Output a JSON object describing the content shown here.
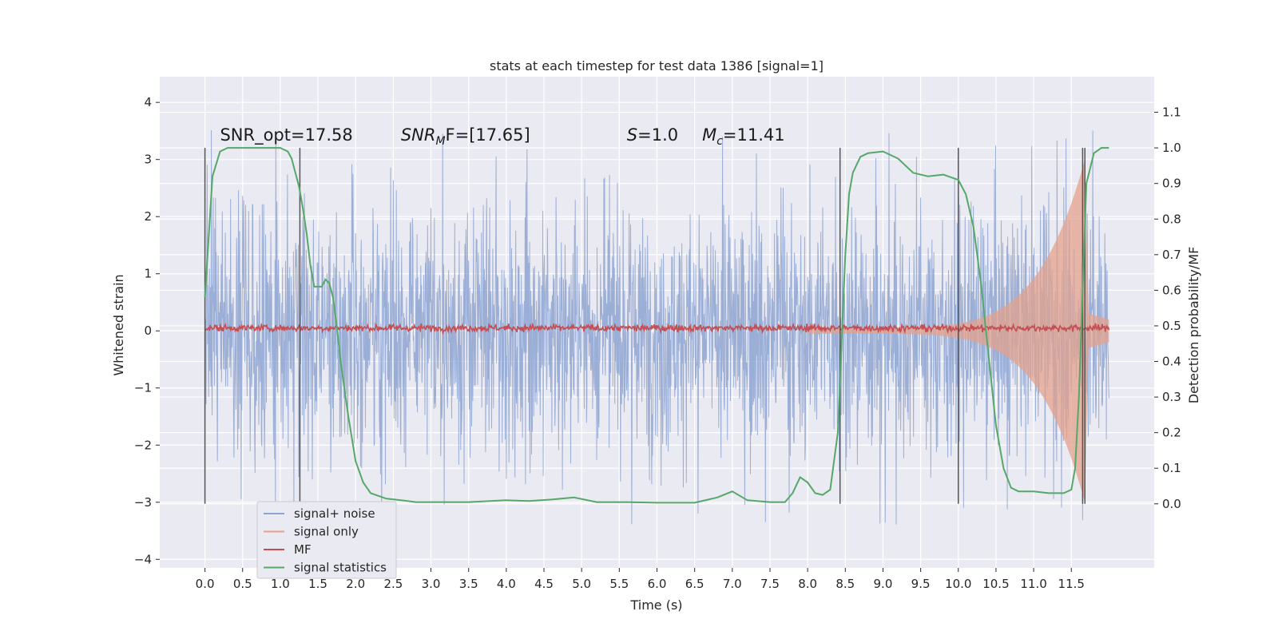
{
  "chart_data": {
    "type": "line",
    "title": "stats at each timestep for test data 1386 [signal=1]",
    "xlabel": "Time (s)",
    "ylabel": "Whitened strain",
    "y2label": "Detection probability/MF",
    "xlim": [
      -0.6,
      12.6
    ],
    "ylim": [
      -4.15,
      4.45
    ],
    "y2lim": [
      -0.18,
      1.2
    ],
    "x_ticks": [
      "0.0",
      "0.5",
      "1.0",
      "1.5",
      "2.0",
      "2.5",
      "3.0",
      "3.5",
      "4.0",
      "4.5",
      "5.0",
      "5.5",
      "6.0",
      "6.5",
      "7.0",
      "7.5",
      "8.0",
      "8.5",
      "9.0",
      "9.5",
      "10.0",
      "10.5",
      "11.0",
      "11.5"
    ],
    "y_ticks": [
      "4",
      "3",
      "2",
      "1",
      "0",
      "−1",
      "−2",
      "−3",
      "−4"
    ],
    "y2_ticks": [
      "1.1",
      "1.0",
      "0.9",
      "0.8",
      "0.7",
      "0.6",
      "0.5",
      "0.4",
      "0.3",
      "0.2",
      "0.1",
      "0.0"
    ],
    "grid": true,
    "legend_position": "lower-left",
    "annotations": [
      {
        "text": "SNR_opt=17.58",
        "x": 0.2
      },
      {
        "text": "SNR",
        "sub": "M",
        "rest": "F=[17.65]",
        "italic": true,
        "x": 2.6
      },
      {
        "text": "S",
        "rest": "=1.0",
        "italic": true,
        "x": 5.6
      },
      {
        "text": "M",
        "sub": "c",
        "rest": "=11.41",
        "italic": true,
        "x": 6.6
      }
    ],
    "vlines": [
      0.0,
      1.26,
      8.43,
      10.0,
      11.65,
      11.68
    ],
    "series": [
      {
        "name": "signal+ noise",
        "color": "#8da3d1",
        "envelope": {
          "t_start": 0.0,
          "t_end": 12.0,
          "typical_amp": 1.4,
          "peak_max": 4.1,
          "peak_min": -3.7
        }
      },
      {
        "name": "signal only",
        "color": "#e3a28c",
        "chirp": {
          "t_start": 8.0,
          "t_merge": 11.68,
          "amp_start": 0.05,
          "amp_peak": 3.0
        }
      },
      {
        "name": "MF",
        "color": "#c44e52",
        "level": 0.05,
        "jitter": 0.06
      },
      {
        "name": "signal statistics",
        "color": "#55a868",
        "axis": "right",
        "x": [
          0.0,
          0.05,
          0.1,
          0.2,
          0.3,
          0.5,
          0.7,
          1.0,
          1.1,
          1.15,
          1.2,
          1.25,
          1.3,
          1.35,
          1.4,
          1.45,
          1.5,
          1.55,
          1.6,
          1.65,
          1.7,
          1.75,
          1.8,
          1.9,
          2.0,
          2.1,
          2.2,
          2.4,
          2.6,
          2.8,
          3.0,
          3.5,
          4.0,
          4.3,
          4.6,
          4.9,
          5.2,
          5.6,
          6.0,
          6.5,
          6.8,
          7.0,
          7.2,
          7.5,
          7.7,
          7.8,
          7.9,
          8.0,
          8.1,
          8.2,
          8.3,
          8.4,
          8.45,
          8.5,
          8.55,
          8.6,
          8.7,
          8.8,
          9.0,
          9.2,
          9.4,
          9.6,
          9.8,
          10.0,
          10.1,
          10.2,
          10.3,
          10.4,
          10.5,
          10.6,
          10.7,
          10.8,
          11.0,
          11.2,
          11.4,
          11.5,
          11.55,
          11.6,
          11.65,
          11.7,
          11.8,
          11.9,
          12.0
        ],
        "y": [
          0.58,
          0.75,
          0.92,
          0.99,
          1.0,
          1.0,
          1.0,
          1.0,
          0.99,
          0.97,
          0.93,
          0.89,
          0.83,
          0.76,
          0.67,
          0.61,
          0.61,
          0.61,
          0.63,
          0.62,
          0.58,
          0.5,
          0.4,
          0.25,
          0.12,
          0.06,
          0.03,
          0.015,
          0.01,
          0.005,
          0.005,
          0.005,
          0.01,
          0.008,
          0.012,
          0.018,
          0.005,
          0.005,
          0.003,
          0.003,
          0.018,
          0.035,
          0.01,
          0.005,
          0.005,
          0.03,
          0.075,
          0.06,
          0.03,
          0.025,
          0.04,
          0.2,
          0.45,
          0.7,
          0.87,
          0.93,
          0.975,
          0.985,
          0.99,
          0.97,
          0.93,
          0.92,
          0.925,
          0.91,
          0.87,
          0.78,
          0.62,
          0.42,
          0.22,
          0.1,
          0.045,
          0.035,
          0.035,
          0.03,
          0.03,
          0.04,
          0.1,
          0.3,
          0.6,
          0.9,
          0.985,
          1.0,
          1.0
        ]
      }
    ]
  }
}
